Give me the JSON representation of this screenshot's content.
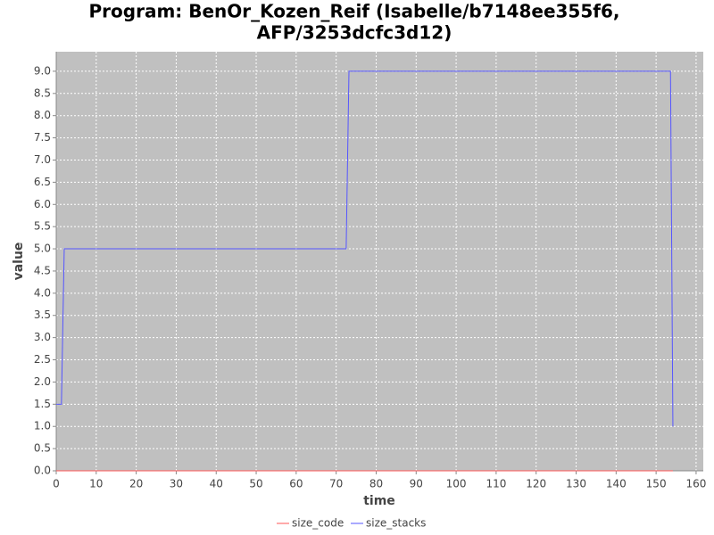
{
  "chart_data": {
    "type": "line",
    "title": [
      "Program: BenOr_Kozen_Reif (Isabelle/b7148ee355f6,",
      "AFP/3253dcfc3d12)"
    ],
    "x_label": "time",
    "y_label": "value",
    "series": [
      {
        "name": "size_code",
        "color": "#ff5555",
        "x": [
          0,
          154.2
        ],
        "values": [
          0,
          0
        ]
      },
      {
        "name": "size_stacks",
        "color": "#5555ff",
        "x": [
          0,
          1.3,
          2.0,
          72.5,
          73.2,
          153.6,
          154.2
        ],
        "values": [
          1.5,
          1.5,
          5,
          5,
          9,
          9,
          1
        ]
      }
    ],
    "xlim": [
      0,
      161.8
    ],
    "ylim": [
      0,
      9.44
    ],
    "xticks": [
      0,
      10,
      20,
      30,
      40,
      50,
      60,
      70,
      80,
      90,
      100,
      110,
      120,
      130,
      140,
      150,
      160
    ],
    "yticks": [
      {
        "value": 0,
        "label": "0.0"
      },
      0.5,
      {
        "value": 1,
        "label": "1.0"
      },
      1.5,
      {
        "value": 2,
        "label": "2.0"
      },
      2.5,
      {
        "value": 3,
        "label": "3.0"
      },
      3.5,
      {
        "value": 4,
        "label": "4.0"
      },
      4.5,
      {
        "value": 5,
        "label": "5.0"
      },
      5.5,
      {
        "value": 6,
        "label": "6.0"
      },
      6.5,
      {
        "value": 7,
        "label": "7.0"
      },
      7.5,
      {
        "value": 8,
        "label": "8.0"
      },
      8.5,
      {
        "value": 9,
        "label": "9.0"
      }
    ],
    "grid": true,
    "legend": "bottom"
  }
}
